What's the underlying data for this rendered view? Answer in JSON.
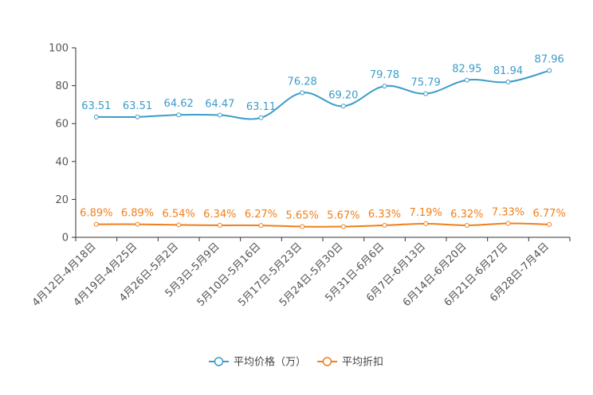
{
  "chart_data": {
    "type": "line",
    "title": "",
    "xlabel": "",
    "ylabel": "",
    "ylim": [
      0,
      100
    ],
    "yticks": [
      "0",
      "20",
      "40",
      "60",
      "80",
      "100"
    ],
    "categories": [
      "4月12日-4月18日",
      "4月19日-4月25日",
      "4月26日-5月2日",
      "5月3日-5月9日",
      "5月10日-5月16日",
      "5月17日-5月23日",
      "5月24日-5月30日",
      "5月31日-6月6日",
      "6月7日-6月13日",
      "6月14日-6月20日",
      "6月21日-6月27日",
      "6月28日-7月4日"
    ],
    "series": [
      {
        "name": "平均价格（万）",
        "color": "#3b9cc9",
        "values": [
          63.51,
          63.51,
          64.62,
          64.47,
          63.11,
          76.28,
          69.2,
          79.78,
          75.79,
          82.95,
          81.94,
          87.96
        ],
        "labels": [
          "63.51",
          "63.51",
          "64.62",
          "64.47",
          "63.11",
          "76.28",
          "69.20",
          "79.78",
          "75.79",
          "82.95",
          "81.94",
          "87.96"
        ]
      },
      {
        "name": "平均折扣",
        "color": "#f07f1b",
        "values": [
          6.89,
          6.89,
          6.54,
          6.34,
          6.27,
          5.65,
          5.67,
          6.33,
          7.19,
          6.32,
          7.33,
          6.77
        ],
        "labels": [
          "6.89%",
          "6.89%",
          "6.54%",
          "6.34%",
          "6.27%",
          "5.65%",
          "5.67%",
          "6.33%",
          "7.19%",
          "6.32%",
          "7.33%",
          "6.77%"
        ]
      }
    ],
    "legend": "bottom"
  }
}
